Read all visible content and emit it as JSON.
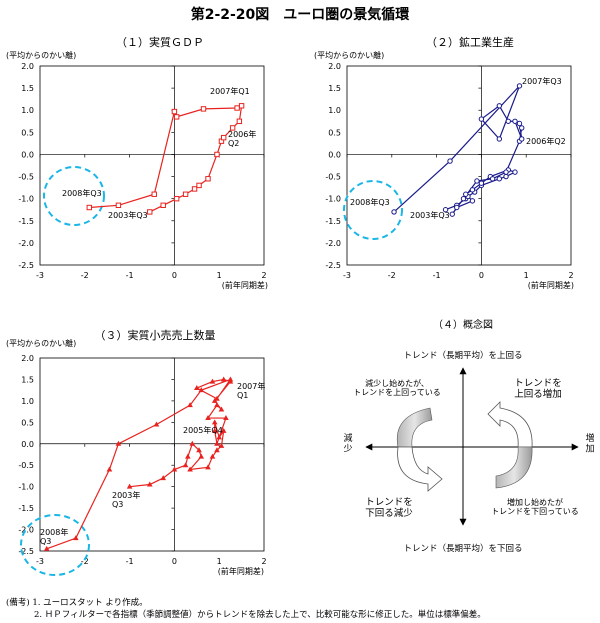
{
  "title": "第2-2-20図　ユーロ圏の景気循環",
  "notes": [
    "(備考) 1. ユーロスタット より作成。",
    "2. ＨＰフィルターで各指標（季節調整値）からトレンドを除去した上で、比較可能な形に修正した。単位は標準偏差。"
  ],
  "chart_data": [
    {
      "type": "line",
      "title": "（１）実質ＧＤＰ",
      "ylabel": "(平均からのかい離)",
      "xlabel": "(前年同期差)",
      "xlim": [
        -3,
        2
      ],
      "ylim": [
        -2.5,
        2.0
      ],
      "xticks": [
        -3,
        -2,
        -1,
        0,
        1,
        2
      ],
      "yticks": [
        -2.5,
        -2.0,
        -1.5,
        -1.0,
        -0.5,
        0.0,
        0.5,
        1.0,
        1.5,
        2.0
      ],
      "color": "#e8231f",
      "marker": "square",
      "series": [
        {
          "x": [
            -0.55,
            -0.25,
            0.05,
            0.25,
            0.45,
            0.55,
            0.75,
            0.95,
            1.05,
            1.1,
            1.3,
            1.45,
            1.5,
            1.4,
            0.65,
            0.05,
            0.0,
            -0.45,
            -1.25,
            -1.9
          ],
          "y": [
            -1.3,
            -1.15,
            -1.0,
            -0.9,
            -0.78,
            -0.7,
            -0.55,
            0.0,
            0.3,
            0.38,
            0.6,
            0.75,
            1.1,
            1.05,
            1.03,
            0.85,
            0.97,
            -0.9,
            -1.15,
            -1.2
          ]
        }
      ],
      "annotations": [
        "2007年Q1",
        "2006年\nQ2",
        "2008年Q3",
        "2003年Q3"
      ]
    },
    {
      "type": "line",
      "title": "（２）鉱工業生産",
      "ylabel": "(平均からのかい離)",
      "xlabel": "(前年同期差)",
      "xlim": [
        -3,
        2
      ],
      "ylim": [
        -2.5,
        2.0
      ],
      "xticks": [
        -3,
        -2,
        -1,
        0,
        1,
        2
      ],
      "yticks": [
        -2.5,
        -2.0,
        -1.5,
        -1.0,
        -0.5,
        0.0,
        0.5,
        1.0,
        1.5,
        2.0
      ],
      "color": "#1a1a8c",
      "marker": "circle",
      "series": [
        {
          "x": [
            -0.8,
            -0.55,
            -0.35,
            -0.3,
            -0.15,
            0.0,
            0.4,
            0.55,
            0.75,
            0.6,
            0.2,
            0.0,
            -0.2,
            -0.35,
            -0.2,
            -0.55,
            -0.65,
            -0.4,
            -0.1,
            0.25,
            0.55,
            0.85,
            0.9,
            0.85,
            0.9,
            0.75,
            0.6,
            0.4,
            0.0,
            0.4,
            0.85,
            -0.7,
            -1.95
          ],
          "y": [
            -1.25,
            -1.15,
            -1.0,
            -0.95,
            -0.85,
            -0.7,
            -0.55,
            -0.5,
            -0.4,
            -0.35,
            -0.5,
            -0.65,
            -0.8,
            -0.9,
            -1.05,
            -1.2,
            -1.35,
            -1.0,
            -0.6,
            -0.55,
            -0.4,
            0.3,
            0.6,
            0.7,
            0.35,
            0.75,
            0.75,
            1.1,
            0.8,
            0.35,
            1.55,
            -0.15,
            -1.3
          ]
        }
      ],
      "annotations": [
        "2007年Q3",
        "2006年Q2",
        "2008年Q3",
        "2003年Q3"
      ]
    },
    {
      "type": "line",
      "title": "（３）実質小売売上数量",
      "ylabel": "(平均からのかい離)",
      "xlabel": "(前年同期差)",
      "xlim": [
        -3,
        2
      ],
      "ylim": [
        -2.5,
        2.0
      ],
      "xticks": [
        -3,
        -2,
        -1,
        0,
        1,
        2
      ],
      "yticks": [
        -2.5,
        -2.0,
        -1.5,
        -1.0,
        -0.5,
        0.0,
        0.5,
        1.0,
        1.5,
        2.0
      ],
      "color": "#e8231f",
      "marker": "triangle",
      "series": [
        {
          "x": [
            -1.0,
            -0.55,
            -0.25,
            0.0,
            0.25,
            0.3,
            0.4,
            0.55,
            0.6,
            0.35,
            0.75,
            0.85,
            0.95,
            1.05,
            1.1,
            1.0,
            0.9,
            0.9,
            0.95,
            1.15,
            0.75,
            0.95,
            1.05,
            0.9,
            1.25,
            1.1,
            0.85,
            0.5,
            0.95,
            1.25,
            0.6,
            0.35,
            -0.4,
            -1.25,
            -1.45,
            -2.2,
            -2.85
          ],
          "y": [
            -1.0,
            -0.95,
            -0.8,
            -0.6,
            -0.5,
            -0.3,
            0.0,
            -0.15,
            -0.3,
            -0.6,
            -0.55,
            -0.3,
            -0.15,
            -0.05,
            0.3,
            0.15,
            0.5,
            0.3,
            0.0,
            0.6,
            0.6,
            0.9,
            0.8,
            1.0,
            1.45,
            1.5,
            1.45,
            1.3,
            1.05,
            1.5,
            1.25,
            0.9,
            0.45,
            0.0,
            -0.6,
            -2.2,
            -2.45
          ]
        }
      ],
      "annotations": [
        "2007年\nQ1",
        "2005年Q4",
        "2003年\nQ3",
        "2008年\nQ3"
      ]
    }
  ],
  "concept": {
    "title": "（４）概念図",
    "top_label": "トレンド（長期平均）を上回る",
    "bottom_label": "トレンド（長期平均）を下回る",
    "left_label": "減\n少",
    "right_label": "増\n加",
    "q_top_left": "減少し始めたが、\nトレンドを上回っている",
    "q_top_right": "トレンドを\n上回る増加",
    "q_bottom_left": "トレンドを\n下回る減少",
    "q_bottom_right": "増加し始めたが\nトレンドを下回っている"
  }
}
